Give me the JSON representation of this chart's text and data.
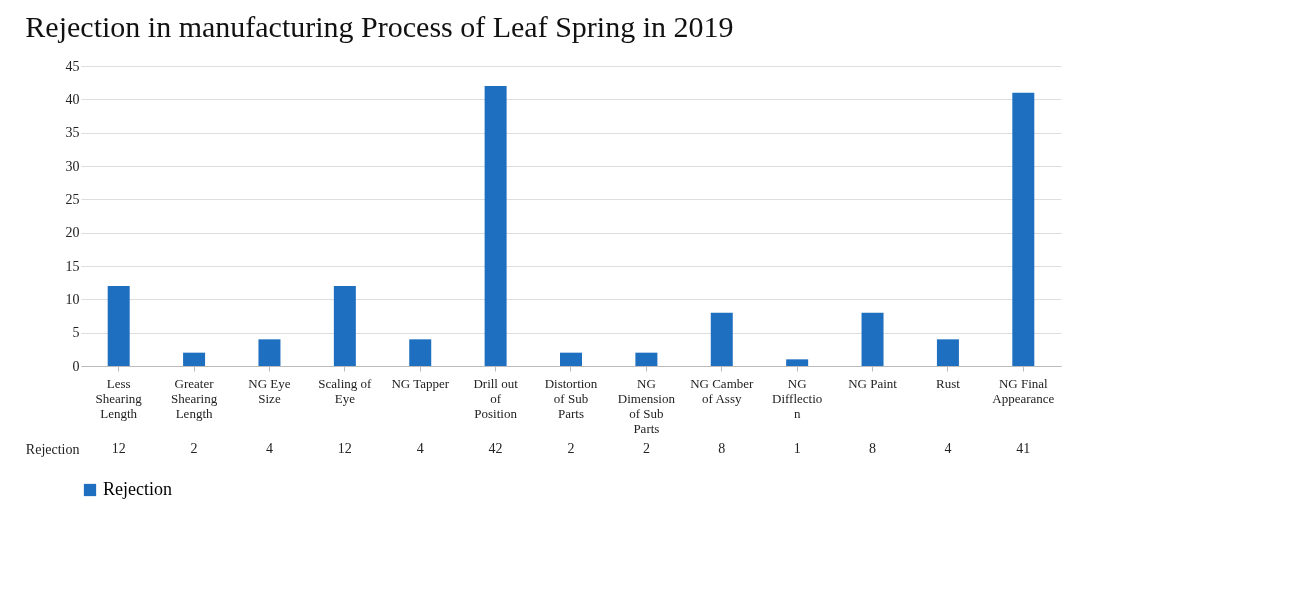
{
  "chart_data": {
    "type": "bar",
    "title": "Rejection in manufacturing Process of Leaf Spring in 2019",
    "categories": [
      "Less Shearing Length",
      "Greater Shearing Length",
      "NG Eye Size",
      "Scaling of Eye",
      "NG Tapper",
      "Drill out of Position",
      "Distortion of Sub Parts",
      "NG Dimension of Sub Parts",
      "NG Camber of Assy",
      "NG Difflection",
      "NG Paint",
      "Rust",
      "NG Final Appearance"
    ],
    "series": [
      {
        "name": "Rejection",
        "color": "#1f6fc0",
        "values": [
          12,
          2,
          4,
          12,
          4,
          42,
          2,
          2,
          8,
          1,
          8,
          4,
          41
        ]
      }
    ],
    "ylim": [
      0,
      45
    ],
    "yticks": [
      0,
      5,
      10,
      15,
      20,
      25,
      30,
      35,
      40,
      45
    ],
    "grid": "y",
    "legend": "bottom",
    "data_labels": true
  }
}
